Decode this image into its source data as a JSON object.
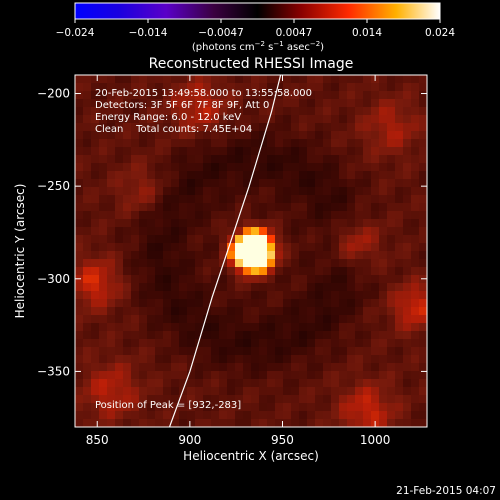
{
  "colorbar": {
    "ticks": [
      "−0.024",
      "−0.014",
      "−0.0047",
      "0.0047",
      "0.014",
      "0.024"
    ],
    "units_prefix": "(photons cm",
    "units_exp1": "−2",
    "units_mid1": " s",
    "units_exp2": "−1",
    "units_mid2": " asec",
    "units_exp3": "−2",
    "units_suffix": ")"
  },
  "chart_data": {
    "type": "heatmap",
    "title": "Reconstructed RHESSI Image",
    "xlabel": "Heliocentric X (arcsec)",
    "ylabel": "Heliocentric Y (arcsec)",
    "xlim": [
      838,
      1028
    ],
    "ylim": [
      -380,
      -190
    ],
    "xticks": [
      850,
      900,
      950,
      1000
    ],
    "yticks": [
      -200,
      -250,
      -300,
      -350
    ],
    "ytick_labels": [
      "−200",
      "−250",
      "−300",
      "−350"
    ],
    "colormap": "rhessi-hot",
    "color_range": [
      -0.024,
      0.024
    ],
    "peak": {
      "x": 932,
      "y": -283
    },
    "limb_curve": [
      [
        889,
        -380
      ],
      [
        900,
        -350
      ],
      [
        912,
        -310
      ],
      [
        921,
        -283
      ],
      [
        932,
        -250
      ],
      [
        944,
        -210
      ],
      [
        949,
        -190
      ]
    ],
    "annotations": [
      "20-Feb-2015 13:49:58.000 to 13:55:58.000",
      "Detectors: 3F 5F 6F 7F 8F 9F, Att 0",
      "Energy Range: 6.0 - 12.0 keV",
      "Clean    Total counts: 7.45E+04",
      "Position of Peak = [932,-283]"
    ],
    "timestamp": "21-Feb-2015 04:07"
  }
}
